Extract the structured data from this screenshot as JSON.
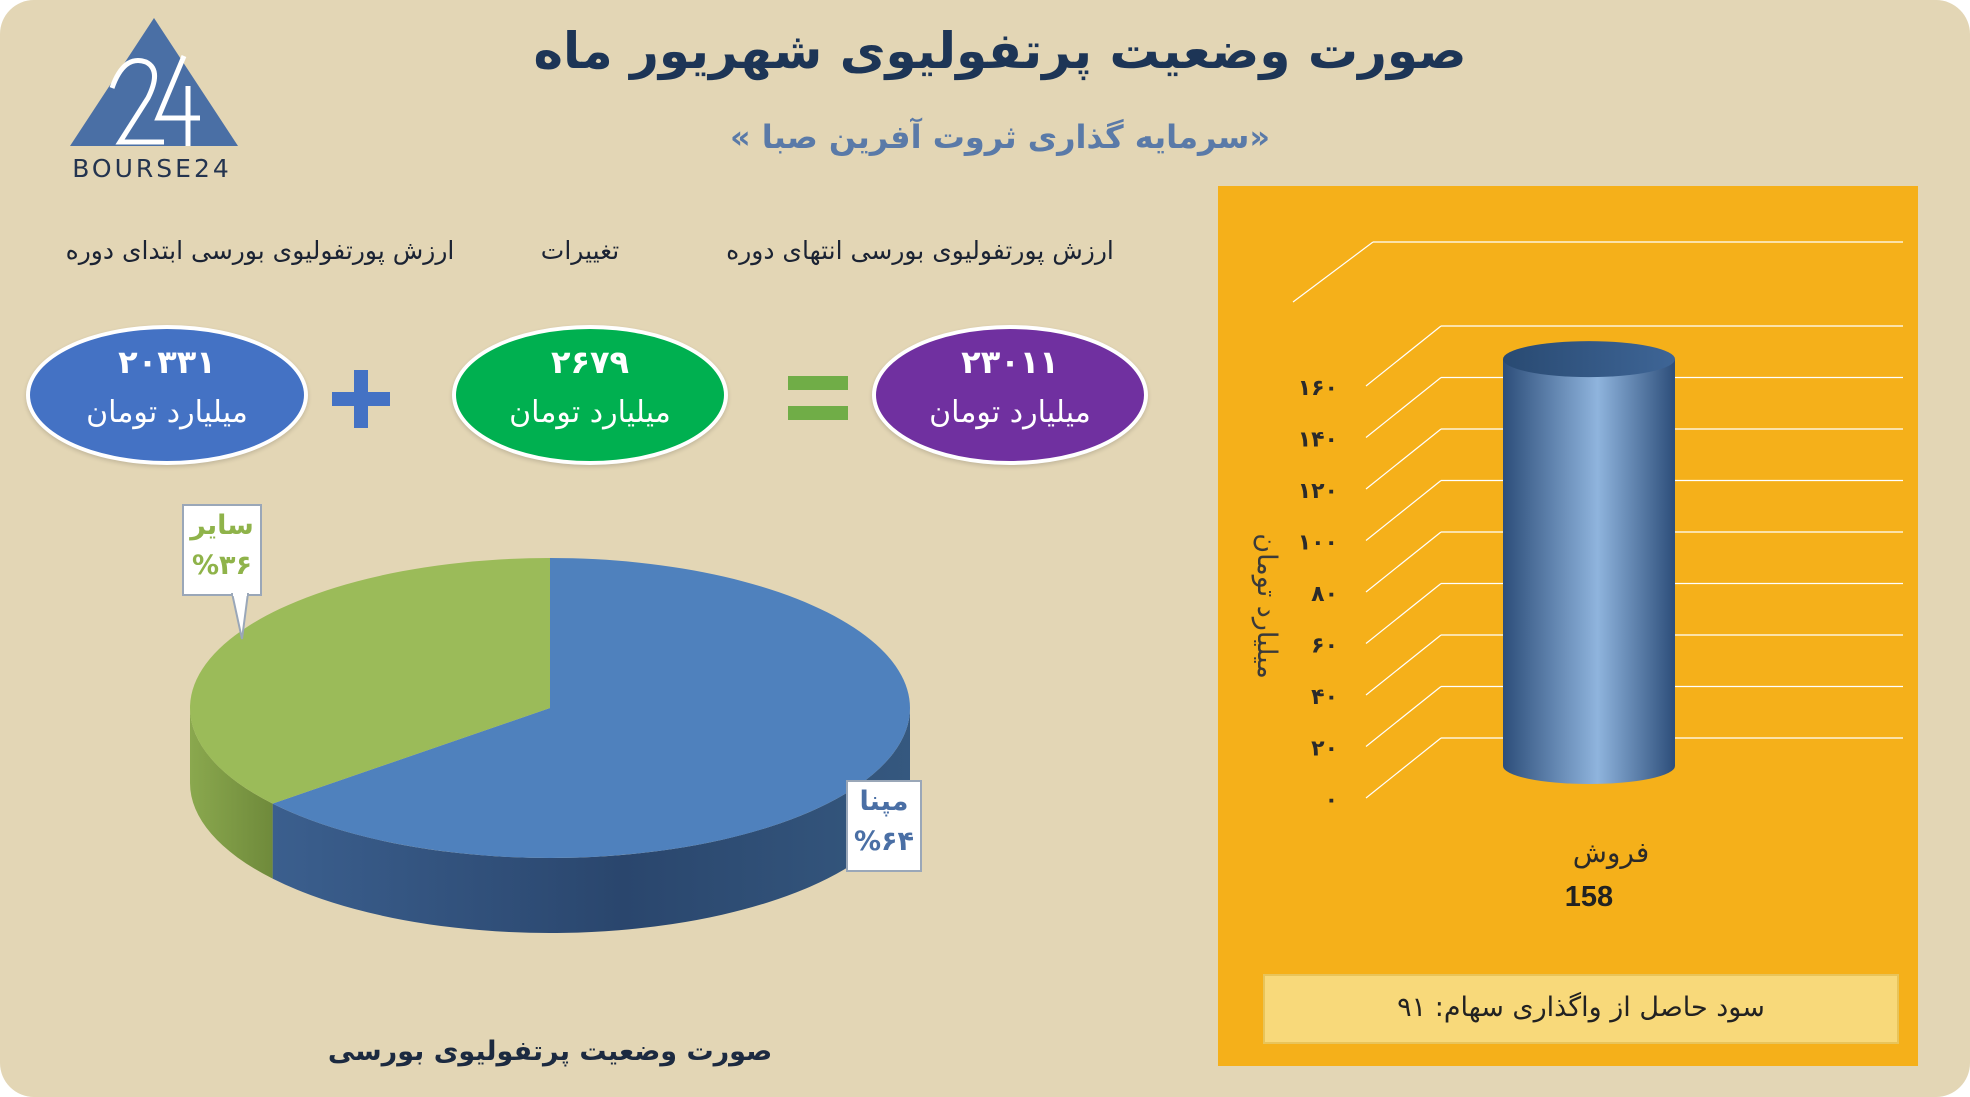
{
  "header": {
    "title": "صورت وضعیت پرتفولیوی شهریور ماه",
    "subtitle": "«سرمایه گذاری ثروت آفرین صبا »"
  },
  "logo": {
    "text": "BOURSE24"
  },
  "summary": {
    "start": {
      "label": "ارزش پورتفولیوی بورسی ابتدای دوره",
      "value": "۲۰۳۳۱",
      "unit": "میلیارد تومان",
      "color": "#4472c4"
    },
    "change": {
      "label": "تغییرات",
      "value": "۲۶۷۹",
      "unit": "میلیارد تومان",
      "color": "#00b050"
    },
    "end": {
      "label": "ارزش پورتفولیوی بورسی انتهای دوره",
      "value": "۲۳۰۱۱",
      "unit": "میلیارد تومان",
      "color": "#7030a0"
    },
    "plus_color": "#4472c4",
    "equals_color": "#70ad47"
  },
  "pie": {
    "caption": "صورت وضعیت پرتفولیوی بورسی"
  },
  "bar": {
    "profit_text": "سود حاصل از واگذاری سهام: ۹۱"
  },
  "chart_data": [
    {
      "type": "pie",
      "title": "صورت وضعیت پرتفولیوی بورسی",
      "slices": [
        {
          "name": "مپنا",
          "value": 64,
          "display": "%۶۴",
          "color": "#4f81bd"
        },
        {
          "name": "سایر",
          "value": 36,
          "display": "%۳۶",
          "color": "#9bbb59"
        }
      ]
    },
    {
      "type": "bar",
      "categories": [
        "فروش"
      ],
      "values": [
        158
      ],
      "data_labels": [
        "158"
      ],
      "ylabel": "میلیارد تومان",
      "ylim": [
        0,
        160
      ],
      "yticks": [
        0,
        20,
        40,
        60,
        80,
        100,
        120,
        140,
        160
      ],
      "ytick_labels": [
        "۰",
        "۲۰",
        "۴۰",
        "۶۰",
        "۸۰",
        "۱۰۰",
        "۱۲۰",
        "۱۴۰",
        "۱۶۰"
      ],
      "grid": true,
      "bar_color": "#4f81bd"
    }
  ]
}
